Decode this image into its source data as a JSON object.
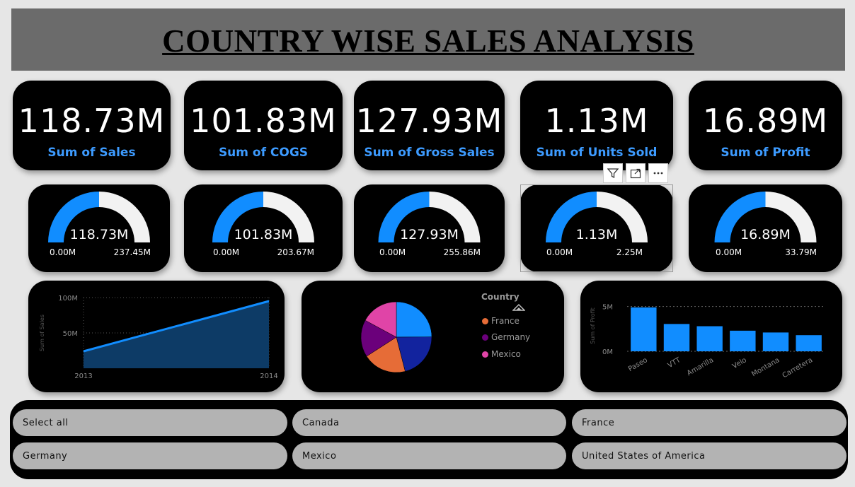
{
  "header": {
    "title": "COUNTRY WISE SALES  ANALYSIS"
  },
  "kpis": [
    {
      "value": "118.73M",
      "label": "Sum of Sales"
    },
    {
      "value": "101.83M",
      "label": "Sum of COGS"
    },
    {
      "value": "127.93M",
      "label": "Sum of Gross Sales"
    },
    {
      "value": "1.13M",
      "label": "Sum of Units Sold"
    },
    {
      "value": "16.89M",
      "label": "Sum of Profit"
    }
  ],
  "gauges": [
    {
      "value": "118.73M",
      "min": "0.00M",
      "max": "237.45M",
      "fraction": 0.5
    },
    {
      "value": "101.83M",
      "min": "0.00M",
      "max": "203.67M",
      "fraction": 0.5
    },
    {
      "value": "127.93M",
      "min": "0.00M",
      "max": "255.86M",
      "fraction": 0.5
    },
    {
      "value": "1.13M",
      "min": "0.00M",
      "max": "2.25M",
      "fraction": 0.5
    },
    {
      "value": "16.89M",
      "min": "0.00M",
      "max": "33.79M",
      "fraction": 0.5
    }
  ],
  "visual_toolbar": {
    "filter_icon": "filter-icon",
    "focus_icon": "focus-mode-icon",
    "more_icon": "more-options-icon"
  },
  "colors": {
    "accent": "#118dff",
    "gauge_track": "#f2f2f2",
    "label_blue": "#3d9bff"
  },
  "chart_data": [
    {
      "type": "area",
      "x": [
        "2013",
        "2014"
      ],
      "series": [
        {
          "values": [
            24000000,
            95000000
          ]
        }
      ],
      "ylabel": "Sum of Sales",
      "yticks": [
        "100M",
        "50M"
      ],
      "ylim": [
        0,
        100000000
      ]
    },
    {
      "type": "pie",
      "legend_title": "Country",
      "legend": [
        "France",
        "Germany",
        "Mexico"
      ],
      "slices": [
        {
          "label": "Canada",
          "value": 24.9,
          "color": "#118dff"
        },
        {
          "label": "United States of America",
          "value": 21.1,
          "color": "#12239e"
        },
        {
          "label": "France",
          "value": 19.9,
          "color": "#e66c37"
        },
        {
          "label": "Germany",
          "value": 17.0,
          "color": "#6b007b"
        },
        {
          "label": "Mexico",
          "value": 17.1,
          "color": "#e044a7"
        }
      ]
    },
    {
      "type": "bar",
      "categories": [
        "Paseo",
        "VTT",
        "Amarilla",
        "Velo",
        "Montana",
        "Carretera"
      ],
      "values": [
        4900000,
        3050000,
        2800000,
        2300000,
        2100000,
        1800000
      ],
      "ylabel": "Sum of Profit",
      "yticks": [
        "5M",
        "0M"
      ],
      "ylim": [
        0,
        6000000
      ]
    }
  ],
  "slicer": {
    "items": [
      "Select all",
      "Canada",
      "France",
      "Germany",
      "Mexico",
      "United States of America"
    ]
  }
}
